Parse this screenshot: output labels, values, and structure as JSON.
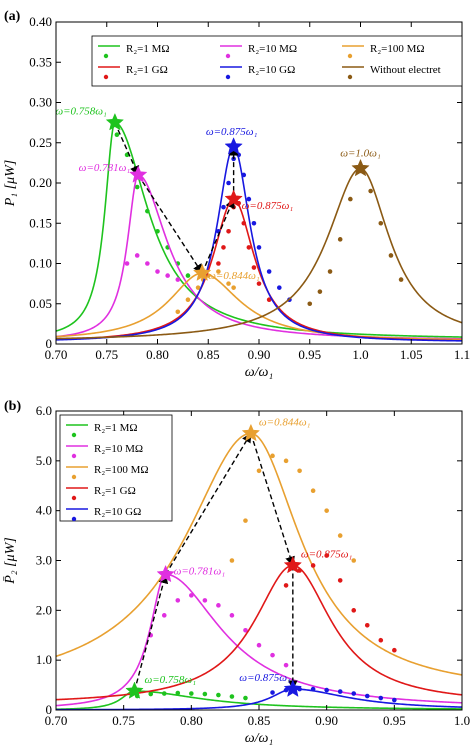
{
  "chart_data": [
    {
      "type": "line",
      "panel_label": "(a)",
      "xlabel": "ω/ω₁",
      "ylabel": "P₁ [μW]",
      "xlim": [
        0.7,
        1.1
      ],
      "ylim": [
        0,
        0.4
      ],
      "xticks": [
        0.7,
        0.75,
        0.8,
        0.85,
        0.9,
        0.95,
        1.0,
        1.05,
        1.1
      ],
      "xtick_labels": [
        "0.70",
        "0.75",
        "0.80",
        "0.85",
        "0.90",
        "0.95",
        "1.0",
        "1.05",
        "1.1"
      ],
      "yticks": [
        0,
        0.05,
        0.1,
        0.15,
        0.2,
        0.25,
        0.3,
        0.35,
        0.4
      ],
      "ytick_labels": [
        "0",
        "0.05",
        "0.10",
        "0.15",
        "0.20",
        "0.25",
        "0.30",
        "0.35",
        "0.40"
      ],
      "legend_position": "top",
      "series": [
        {
          "name": "R₂=1 MΩ",
          "color": "#1ec31e",
          "line": {
            "peak": 0.758,
            "height": 0.275,
            "wl": 0.012,
            "wr": 0.04,
            "base": 0.005
          },
          "points": [
            [
              0.76,
              0.26
            ],
            [
              0.77,
              0.235
            ],
            [
              0.78,
              0.195
            ],
            [
              0.79,
              0.165
            ],
            [
              0.8,
              0.14
            ],
            [
              0.81,
              0.12
            ],
            [
              0.82,
              0.1
            ],
            [
              0.83,
              0.085
            ]
          ]
        },
        {
          "name": "R₂=10 MΩ",
          "color": "#e030e0",
          "line": {
            "peak": 0.781,
            "height": 0.21,
            "wl": 0.013,
            "wr": 0.035,
            "base": 0.004
          },
          "points": [
            [
              0.77,
              0.1
            ],
            [
              0.78,
              0.11
            ],
            [
              0.79,
              0.1
            ],
            [
              0.8,
              0.09
            ],
            [
              0.81,
              0.085
            ],
            [
              0.82,
              0.08
            ]
          ]
        },
        {
          "name": "R₂=100 MΩ",
          "color": "#e8a030",
          "line": {
            "peak": 0.844,
            "height": 0.088,
            "wl": 0.04,
            "wr": 0.045,
            "base": 0.003
          },
          "points": [
            [
              0.82,
              0.04
            ],
            [
              0.83,
              0.055
            ],
            [
              0.84,
              0.07
            ],
            [
              0.845,
              0.08
            ],
            [
              0.85,
              0.085
            ],
            [
              0.86,
              0.09
            ],
            [
              0.87,
              0.075
            ],
            [
              0.875,
              0.07
            ]
          ]
        },
        {
          "name": "R₂=1 GΩ",
          "color": "#e01818",
          "line": {
            "peak": 0.875,
            "height": 0.18,
            "wl": 0.025,
            "wr": 0.025,
            "base": 0.002
          },
          "points": [
            [
              0.86,
              0.1
            ],
            [
              0.865,
              0.12
            ],
            [
              0.87,
              0.14
            ],
            [
              0.875,
              0.17
            ],
            [
              0.88,
              0.175
            ],
            [
              0.885,
              0.15
            ],
            [
              0.89,
              0.12
            ],
            [
              0.895,
              0.095
            ],
            [
              0.9,
              0.075
            ],
            [
              0.91,
              0.055
            ]
          ]
        },
        {
          "name": "R₂=10 GΩ",
          "color": "#1818e0",
          "line": {
            "peak": 0.875,
            "height": 0.245,
            "wl": 0.02,
            "wr": 0.02,
            "base": 0.002
          },
          "points": [
            [
              0.86,
              0.14
            ],
            [
              0.865,
              0.17
            ],
            [
              0.87,
              0.2
            ],
            [
              0.875,
              0.23
            ],
            [
              0.88,
              0.235
            ],
            [
              0.885,
              0.21
            ],
            [
              0.89,
              0.18
            ],
            [
              0.895,
              0.15
            ],
            [
              0.9,
              0.12
            ],
            [
              0.91,
              0.09
            ],
            [
              0.92,
              0.07
            ],
            [
              0.93,
              0.055
            ]
          ]
        },
        {
          "name": "Without electret",
          "color": "#8b5a14",
          "line": {
            "peak": 1.0,
            "height": 0.218,
            "wl": 0.04,
            "wr": 0.035,
            "base": 0.003
          },
          "points": [
            [
              0.95,
              0.05
            ],
            [
              0.96,
              0.065
            ],
            [
              0.97,
              0.09
            ],
            [
              0.98,
              0.13
            ],
            [
              0.99,
              0.18
            ],
            [
              1.0,
              0.215
            ],
            [
              1.01,
              0.19
            ],
            [
              1.02,
              0.15
            ],
            [
              1.03,
              0.11
            ],
            [
              1.04,
              0.08
            ]
          ]
        }
      ],
      "annotations": [
        {
          "text": "ω=0.758ω₁",
          "x": 0.758,
          "y": 0.275,
          "color": "#1ec31e"
        },
        {
          "text": "ω=0.781ω₁",
          "x": 0.781,
          "y": 0.21,
          "color": "#e030e0"
        },
        {
          "text": "ω=0.844ω₁",
          "x": 0.844,
          "y": 0.088,
          "color": "#e8a030"
        },
        {
          "text": "ω=0.875ω₁",
          "x": 0.875,
          "y": 0.18,
          "color": "#e01818"
        },
        {
          "text": "ω=0.875ω₁",
          "x": 0.875,
          "y": 0.245,
          "color": "#1818e0"
        },
        {
          "text": "ω=1.0ω₁",
          "x": 1.0,
          "y": 0.218,
          "color": "#8b5a14"
        }
      ],
      "arrows": [
        [
          0.758,
          0.275,
          0.781,
          0.21
        ],
        [
          0.781,
          0.21,
          0.844,
          0.088
        ],
        [
          0.844,
          0.088,
          0.875,
          0.18
        ],
        [
          0.875,
          0.18,
          0.875,
          0.245
        ]
      ]
    },
    {
      "type": "line",
      "panel_label": "(b)",
      "xlabel": "ω/ω₁",
      "ylabel": "P̄₂ [μW]",
      "xlim": [
        0.7,
        1.0
      ],
      "ylim": [
        0,
        6
      ],
      "xticks": [
        0.7,
        0.75,
        0.8,
        0.85,
        0.9,
        0.95,
        1.0
      ],
      "xtick_labels": [
        "0.70",
        "0.75",
        "0.80",
        "0.85",
        "0.90",
        "0.95",
        "1.0"
      ],
      "yticks": [
        0,
        1,
        2,
        3,
        4,
        5,
        6
      ],
      "ytick_labels": [
        "0",
        "1.0",
        "2.0",
        "3.0",
        "4.0",
        "5.0",
        "6.0"
      ],
      "legend_position": "top-left",
      "series": [
        {
          "name": "R₂=1 MΩ",
          "color": "#1ec31e",
          "line": {
            "peak": 0.758,
            "height": 0.38,
            "wl": 0.012,
            "wr": 0.06,
            "base": 0.0
          },
          "points": [
            [
              0.76,
              0.28
            ],
            [
              0.77,
              0.32
            ],
            [
              0.78,
              0.33
            ],
            [
              0.79,
              0.34
            ],
            [
              0.8,
              0.33
            ],
            [
              0.81,
              0.32
            ],
            [
              0.82,
              0.3
            ],
            [
              0.83,
              0.27
            ],
            [
              0.84,
              0.24
            ]
          ]
        },
        {
          "name": "R₂=10 MΩ",
          "color": "#e030e0",
          "line": {
            "peak": 0.781,
            "height": 2.72,
            "wl": 0.014,
            "wr": 0.05,
            "base": 0.01
          },
          "points": [
            [
              0.77,
              1.5
            ],
            [
              0.78,
              1.9
            ],
            [
              0.79,
              2.2
            ],
            [
              0.8,
              2.3
            ],
            [
              0.81,
              2.2
            ],
            [
              0.82,
              2.1
            ],
            [
              0.83,
              1.9
            ],
            [
              0.84,
              1.6
            ],
            [
              0.85,
              1.3
            ],
            [
              0.86,
              1.1
            ],
            [
              0.87,
              0.9
            ]
          ]
        },
        {
          "name": "R₂=100 MΩ",
          "color": "#e8a030",
          "line": {
            "peak": 0.844,
            "height": 5.55,
            "wl": 0.06,
            "wr": 0.045,
            "base": 0.3
          },
          "points": [
            [
              0.83,
              3.0
            ],
            [
              0.84,
              3.8
            ],
            [
              0.85,
              4.8
            ],
            [
              0.86,
              5.1
            ],
            [
              0.87,
              5.0
            ],
            [
              0.88,
              4.8
            ],
            [
              0.89,
              4.4
            ],
            [
              0.9,
              4.0
            ],
            [
              0.91,
              3.5
            ],
            [
              0.92,
              3.0
            ]
          ]
        },
        {
          "name": "R₂=1 GΩ",
          "color": "#e01818",
          "line": {
            "peak": 0.875,
            "height": 2.9,
            "wl": 0.035,
            "wr": 0.035,
            "base": 0.1
          },
          "points": [
            [
              0.87,
              2.5
            ],
            [
              0.88,
              2.8
            ],
            [
              0.89,
              2.9
            ],
            [
              0.9,
              3.1
            ],
            [
              0.91,
              2.6
            ],
            [
              0.92,
              2.0
            ],
            [
              0.93,
              1.7
            ],
            [
              0.94,
              1.4
            ],
            [
              0.95,
              1.2
            ]
          ]
        },
        {
          "name": "R₂=10 GΩ",
          "color": "#1818e0",
          "line": {
            "peak": 0.875,
            "height": 0.42,
            "wl": 0.02,
            "wr": 0.05,
            "base": 0.0
          },
          "points": [
            [
              0.86,
              0.35
            ],
            [
              0.87,
              0.4
            ],
            [
              0.88,
              0.42
            ],
            [
              0.89,
              0.42
            ],
            [
              0.9,
              0.4
            ],
            [
              0.91,
              0.37
            ],
            [
              0.92,
              0.33
            ],
            [
              0.93,
              0.28
            ],
            [
              0.94,
              0.24
            ],
            [
              0.95,
              0.2
            ]
          ]
        }
      ],
      "annotations": [
        {
          "text": "ω=0.758ω₁",
          "x": 0.758,
          "y": 0.38,
          "color": "#1ec31e"
        },
        {
          "text": "ω=0.781ω₁",
          "x": 0.781,
          "y": 2.72,
          "color": "#e030e0"
        },
        {
          "text": "ω=0.844ω₁",
          "x": 0.844,
          "y": 5.55,
          "color": "#e8a030"
        },
        {
          "text": "ω=0.875ω₁",
          "x": 0.875,
          "y": 2.9,
          "color": "#e01818"
        },
        {
          "text": "ω=0.875ω₁",
          "x": 0.875,
          "y": 0.42,
          "color": "#1818e0"
        }
      ],
      "arrows": [
        [
          0.758,
          0.38,
          0.781,
          2.72
        ],
        [
          0.781,
          2.72,
          0.844,
          5.55
        ],
        [
          0.844,
          5.55,
          0.875,
          2.9
        ],
        [
          0.875,
          2.9,
          0.875,
          0.42
        ]
      ]
    }
  ]
}
